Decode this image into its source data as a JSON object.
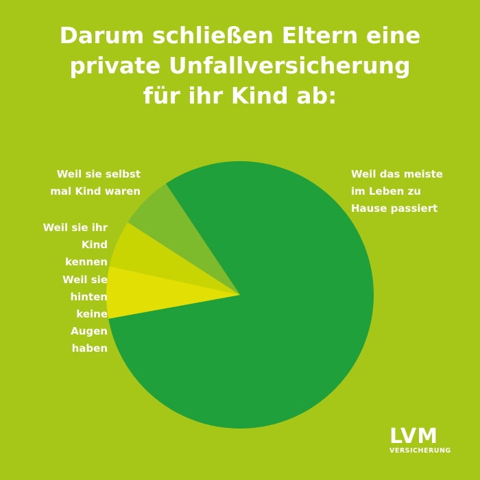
{
  "chart_data": {
    "type": "pie",
    "title": "Darum schließen Eltern eine private Unfallversicherung für ihr Kind ab:",
    "categories": [
      "Weil das meiste im Leben zu Hause passiert",
      "Weil sie hinten keine Augen haben",
      "Weil sie ihr Kind kennen",
      "Weil sie selbst mal Kind waren"
    ],
    "values": [
      81.5,
      6.3,
      5.7,
      6.5
    ],
    "colors": [
      "#1fa03b",
      "#e1df03",
      "#c9d503",
      "#7dbb2d"
    ]
  },
  "logo": {
    "name": "LVM",
    "subtitle": "VERSICHERUNG"
  }
}
